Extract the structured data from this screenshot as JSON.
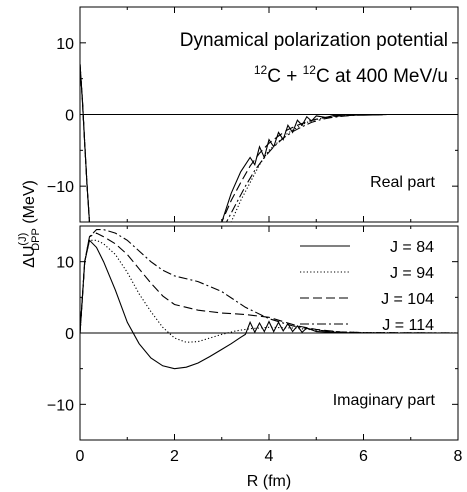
{
  "chart_data": [
    {
      "type": "line",
      "panel_label": "Real part",
      "title": "Dynamical polarization potential",
      "subtitle_parts": {
        "a1": "12",
        "e1": "C + ",
        "a2": "12",
        "e2": "C at 400 MeV/u"
      },
      "xlim": [
        0,
        8
      ],
      "ylim": [
        -15,
        15
      ],
      "xticks": [
        0,
        2,
        4,
        6,
        8
      ],
      "yticks": [
        -10,
        0,
        10
      ],
      "ytick_labels": [
        "−10",
        "0",
        "10"
      ],
      "series": [
        {
          "name": "J = 84",
          "style": "solid",
          "x": [
            0,
            0.05,
            0.1,
            0.15,
            0.2,
            3.0,
            3.2,
            3.4,
            3.6,
            3.7,
            3.8,
            3.9,
            4.0,
            4.1,
            4.2,
            4.3,
            4.4,
            4.5,
            4.6,
            4.7,
            4.8,
            4.9,
            5.0,
            5.2,
            5.4,
            5.6,
            5.8,
            6.0,
            6.5,
            7.0,
            8.0
          ],
          "y": [
            7,
            2,
            -4,
            -10,
            -15,
            -15,
            -11,
            -8,
            -6,
            -7,
            -4.5,
            -6,
            -3.5,
            -4.5,
            -2.5,
            -3.5,
            -1.5,
            -2.5,
            -0.8,
            -1.5,
            -0.3,
            -0.9,
            -0.2,
            -0.4,
            -0.1,
            -0.2,
            -0.05,
            -0.1,
            0,
            0,
            0
          ]
        },
        {
          "name": "J = 94",
          "style": "dotted",
          "x": [
            0,
            0.05,
            0.1,
            0.15,
            0.2,
            3.2,
            3.4,
            3.6,
            3.8,
            4.0,
            4.2,
            4.4,
            4.6,
            4.8,
            5.0,
            5.2,
            5.4,
            5.6,
            5.8,
            6.0,
            6.5,
            7.0,
            8.0
          ],
          "y": [
            7,
            2,
            -4,
            -10,
            -15,
            -15,
            -12,
            -9.5,
            -7,
            -5,
            -3.8,
            -2.6,
            -1.8,
            -1.1,
            -0.7,
            -0.4,
            -0.25,
            -0.15,
            -0.08,
            -0.05,
            0,
            0,
            0
          ]
        },
        {
          "name": "J = 104",
          "style": "dashed",
          "x": [
            0,
            0.05,
            0.1,
            0.15,
            0.2,
            3.0,
            3.2,
            3.4,
            3.6,
            3.8,
            4.0,
            4.2,
            4.4,
            4.6,
            4.8,
            5.0,
            5.2,
            5.4,
            5.6,
            5.8,
            6.0,
            6.5,
            7.0,
            8.0
          ],
          "y": [
            7,
            2,
            -4,
            -10,
            -15,
            -15,
            -12,
            -9.5,
            -7.2,
            -5.4,
            -4,
            -3,
            -2.1,
            -1.5,
            -1,
            -0.65,
            -0.4,
            -0.25,
            -0.15,
            -0.08,
            -0.05,
            0,
            0,
            0
          ]
        },
        {
          "name": "J = 114",
          "style": "dashdot",
          "x": [
            0,
            0.05,
            0.1,
            0.15,
            0.2,
            3.1,
            3.3,
            3.5,
            3.7,
            3.9,
            4.1,
            4.3,
            4.5,
            4.7,
            4.9,
            5.1,
            5.3,
            5.5,
            5.7,
            6.0,
            6.5,
            7.0,
            8.0
          ],
          "y": [
            7,
            2,
            -4,
            -10,
            -15,
            -15,
            -12.5,
            -10,
            -7.8,
            -6,
            -4.5,
            -3.3,
            -2.4,
            -1.7,
            -1.1,
            -0.7,
            -0.45,
            -0.28,
            -0.16,
            -0.07,
            0,
            0,
            0
          ]
        }
      ]
    },
    {
      "type": "line",
      "panel_label": "Imaginary part",
      "xlabel": "R (fm)",
      "ylabel_parts": {
        "a": "ΔU",
        "b": "(J)",
        "c": "DPP",
        "d": " (MeV)"
      },
      "xlim": [
        0,
        8
      ],
      "ylim": [
        -15,
        15
      ],
      "xticks": [
        0,
        2,
        4,
        6,
        8
      ],
      "yticks": [
        -10,
        0,
        10
      ],
      "ytick_labels": [
        "−10",
        "0",
        "10"
      ],
      "xtick_labels": [
        "0",
        "2",
        "4",
        "6",
        "8"
      ],
      "series": [
        {
          "name": "J = 84",
          "style": "solid",
          "x": [
            0,
            0.05,
            0.1,
            0.2,
            0.35,
            0.5,
            0.75,
            1.0,
            1.25,
            1.5,
            1.75,
            2.0,
            2.25,
            2.5,
            2.75,
            3.0,
            3.2,
            3.4,
            3.5,
            3.6,
            3.7,
            3.8,
            3.9,
            4.0,
            4.1,
            4.2,
            4.3,
            4.4,
            4.5,
            4.6,
            4.7,
            4.8,
            5.0,
            5.5,
            6.0,
            8.0
          ],
          "y": [
            0,
            5,
            10,
            13,
            12,
            10,
            6,
            1.5,
            -1.5,
            -3.5,
            -4.6,
            -5,
            -4.8,
            -4.2,
            -3.3,
            -2.3,
            -1.5,
            -0.6,
            -0.2,
            1.5,
            0.1,
            1.4,
            0.2,
            1.6,
            0.2,
            1.5,
            0.3,
            1.3,
            0.2,
            1.0,
            0.1,
            0.7,
            0.2,
            0.05,
            0,
            0
          ]
        },
        {
          "name": "J = 94",
          "style": "dotted",
          "x": [
            0,
            0.05,
            0.1,
            0.2,
            0.35,
            0.5,
            0.75,
            1.0,
            1.25,
            1.5,
            1.75,
            2.0,
            2.25,
            2.5,
            2.75,
            3.0,
            3.3,
            3.6,
            4.0,
            4.5,
            5.0,
            5.5,
            6.0,
            8.0
          ],
          "y": [
            0,
            5,
            10,
            13,
            13,
            12.5,
            11,
            8.5,
            5.5,
            3,
            0.8,
            -0.7,
            -1.3,
            -1.2,
            -0.7,
            -0.2,
            0.3,
            0.6,
            0.8,
            0.7,
            0.4,
            0.15,
            0.05,
            0
          ]
        },
        {
          "name": "J = 104",
          "style": "dashed",
          "x": [
            0,
            0.05,
            0.1,
            0.2,
            0.35,
            0.5,
            0.75,
            1.0,
            1.25,
            1.5,
            1.75,
            2.0,
            2.5,
            3.0,
            3.5,
            4.0,
            4.3,
            4.6,
            5.0,
            5.5,
            6.0,
            8.0
          ],
          "y": [
            0,
            5,
            10,
            13.5,
            14,
            13.5,
            12.5,
            11,
            9,
            7,
            5.2,
            4,
            3.2,
            2.8,
            2.6,
            2.2,
            1.6,
            1.0,
            0.5,
            0.15,
            0.05,
            0
          ]
        },
        {
          "name": "J = 114",
          "style": "dashdot",
          "x": [
            0,
            0.05,
            0.1,
            0.2,
            0.35,
            0.5,
            0.75,
            1.0,
            1.25,
            1.5,
            1.75,
            2.0,
            2.5,
            3.0,
            3.5,
            4.0,
            4.5,
            5.0,
            5.5,
            6.0,
            8.0
          ],
          "y": [
            0,
            5,
            10,
            13.5,
            14.5,
            14.5,
            14,
            13,
            11.5,
            10,
            8.8,
            8,
            7.2,
            5.8,
            3.6,
            2.0,
            1.0,
            0.4,
            0.12,
            0.03,
            0
          ]
        }
      ]
    }
  ]
}
